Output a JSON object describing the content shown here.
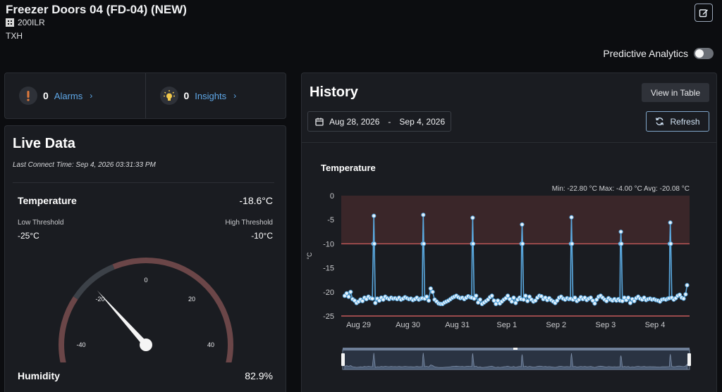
{
  "header": {
    "title": "Freezer Doors 04 (FD-04) (NEW)",
    "serial": "200ILR",
    "site": "TXH",
    "edit_icon": "edit-icon"
  },
  "predictive": {
    "label": "Predictive Analytics",
    "enabled": false
  },
  "alarms": {
    "count": "0",
    "label": "Alarms",
    "icon": "exclamation-icon",
    "color": "#e07a3c"
  },
  "insights": {
    "count": "0",
    "label": "Insights",
    "icon": "lightbulb-icon",
    "color": "#f2c94c"
  },
  "live": {
    "title": "Live Data",
    "last_connect": "Last Connect Time: Sep 4, 2026 03:31:33 PM",
    "temperature_label": "Temperature",
    "temperature_value": "-18.6°C",
    "low_label": "Low Threshold",
    "low_value": "-25°C",
    "high_label": "High Threshold",
    "high_value": "-10°C",
    "humidity_label": "Humidity",
    "humidity_value": "82.9%",
    "gauge": {
      "min": -60,
      "max": 60,
      "value": -18.6,
      "ticks": [
        "-60",
        "-40",
        "-20",
        "0",
        "20",
        "40",
        "60"
      ],
      "tick_values": [
        -60,
        -40,
        -20,
        0,
        20,
        40,
        60
      ]
    }
  },
  "history": {
    "title": "History",
    "view_table_label": "View in Table",
    "date_start": "Aug 28, 2026",
    "date_sep": "-",
    "date_end": "Sep 4, 2026",
    "refresh_label": "Refresh"
  },
  "chart_data": {
    "type": "line",
    "title": "Temperature",
    "ylabel": "°C",
    "stats_text": "Min: -22.80 °C  Max: -4.00 °C  Avg: -20.08 °C",
    "ylim": [
      -25,
      0
    ],
    "y_ticks": [
      0,
      -5,
      -10,
      -15,
      -20,
      -25
    ],
    "x_ticks": [
      {
        "label": "Aug 29",
        "day": 1
      },
      {
        "label": "Aug 30",
        "day": 2
      },
      {
        "label": "Aug 31",
        "day": 3
      },
      {
        "label": "Sep 1",
        "day": 4
      },
      {
        "label": "Sep 2",
        "day": 5
      },
      {
        "label": "Sep 3",
        "day": 6
      },
      {
        "label": "Sep 4",
        "day": 7
      }
    ],
    "thresholds": {
      "high": -10,
      "low": -25
    },
    "series": [
      {
        "x": [
          0.72,
          0.76,
          0.8,
          0.84,
          0.88,
          0.92,
          0.96,
          1.0,
          1.04,
          1.08,
          1.12,
          1.16,
          1.2,
          1.24,
          1.28,
          1.3,
          1.31,
          1.32,
          1.34,
          1.38,
          1.42,
          1.46,
          1.5,
          1.54,
          1.58,
          1.62,
          1.66,
          1.7,
          1.74,
          1.78,
          1.82,
          1.86,
          1.9,
          1.94,
          1.98,
          2.02,
          2.06,
          2.1,
          2.14,
          2.18,
          2.22,
          2.26,
          2.29,
          2.3,
          2.31,
          2.32,
          2.34,
          2.38,
          2.42,
          2.46,
          2.5,
          2.54,
          2.58,
          2.62,
          2.66,
          2.7,
          2.74,
          2.78,
          2.82,
          2.86,
          2.9,
          2.94,
          2.98,
          3.02,
          3.06,
          3.1,
          3.14,
          3.18,
          3.22,
          3.26,
          3.29,
          3.3,
          3.31,
          3.32,
          3.34,
          3.38,
          3.42,
          3.46,
          3.5,
          3.54,
          3.58,
          3.62,
          3.66,
          3.7,
          3.74,
          3.78,
          3.82,
          3.86,
          3.9,
          3.94,
          3.98,
          4.02,
          4.06,
          4.1,
          4.14,
          4.18,
          4.22,
          4.26,
          4.29,
          4.3,
          4.31,
          4.32,
          4.34,
          4.38,
          4.42,
          4.46,
          4.5,
          4.54,
          4.58,
          4.62,
          4.66,
          4.7,
          4.74,
          4.78,
          4.82,
          4.86,
          4.9,
          4.94,
          4.98,
          5.02,
          5.06,
          5.1,
          5.14,
          5.18,
          5.22,
          5.26,
          5.29,
          5.3,
          5.31,
          5.32,
          5.34,
          5.38,
          5.42,
          5.46,
          5.5,
          5.54,
          5.58,
          5.62,
          5.66,
          5.7,
          5.74,
          5.78,
          5.82,
          5.86,
          5.9,
          5.94,
          5.98,
          6.02,
          6.06,
          6.1,
          6.14,
          6.18,
          6.22,
          6.26,
          6.29,
          6.3,
          6.31,
          6.32,
          6.34,
          6.38,
          6.42,
          6.46,
          6.5,
          6.54,
          6.58,
          6.62,
          6.66,
          6.7,
          6.74,
          6.78,
          6.82,
          6.86,
          6.9,
          6.94,
          6.98,
          7.02,
          7.06,
          7.1,
          7.14,
          7.18,
          7.22,
          7.26,
          7.29,
          7.3,
          7.31,
          7.32,
          7.34,
          7.38,
          7.42,
          7.46,
          7.5,
          7.54,
          7.58,
          7.62,
          7.65
        ],
        "y": [
          -20.8,
          -20.3,
          -21.0,
          -20.0,
          -21.5,
          -21.8,
          -22.3,
          -22.0,
          -21.6,
          -21.9,
          -21.2,
          -21.5,
          -21.0,
          -21.3,
          -21.4,
          -10.0,
          -4.2,
          -10.0,
          -22.3,
          -21.4,
          -21.8,
          -21.2,
          -21.6,
          -21.0,
          -21.3,
          -21.5,
          -21.2,
          -21.4,
          -21.3,
          -21.5,
          -21.2,
          -21.6,
          -21.4,
          -21.1,
          -21.3,
          -21.5,
          -21.4,
          -21.7,
          -21.5,
          -21.2,
          -21.6,
          -21.4,
          -21.3,
          -10.0,
          -4.0,
          -10.0,
          -21.4,
          -21.0,
          -21.8,
          -19.3,
          -20.0,
          -21.6,
          -22.0,
          -22.4,
          -22.5,
          -22.5,
          -22.2,
          -22.0,
          -21.8,
          -21.5,
          -21.2,
          -21.0,
          -20.8,
          -21.1,
          -21.3,
          -21.2,
          -21.5,
          -21.2,
          -20.9,
          -21.1,
          -21.2,
          -10.0,
          -4.6,
          -10.0,
          -21.4,
          -20.8,
          -22.2,
          -21.6,
          -22.5,
          -22.2,
          -21.9,
          -21.6,
          -21.1,
          -20.8,
          -21.8,
          -22.5,
          -21.8,
          -22.4,
          -22.0,
          -21.6,
          -21.3,
          -20.8,
          -21.5,
          -22.0,
          -21.2,
          -22.3,
          -21.6,
          -21.2,
          -21.5,
          -10.0,
          -6.0,
          -10.0,
          -21.6,
          -20.8,
          -21.9,
          -21.0,
          -21.6,
          -22.0,
          -21.8,
          -21.2,
          -20.8,
          -20.9,
          -21.5,
          -21.2,
          -21.7,
          -21.3,
          -21.7,
          -22.0,
          -22.3,
          -21.8,
          -21.2,
          -21.0,
          -21.4,
          -21.6,
          -21.3,
          -21.5,
          -21.4,
          -10.0,
          -4.5,
          -10.0,
          -21.6,
          -21.2,
          -21.9,
          -21.6,
          -21.1,
          -21.5,
          -21.2,
          -21.7,
          -21.4,
          -21.2,
          -21.8,
          -22.4,
          -21.6,
          -21.0,
          -20.8,
          -21.2,
          -21.6,
          -21.9,
          -21.3,
          -21.6,
          -21.8,
          -21.5,
          -21.8,
          -21.5,
          -21.8,
          -10.0,
          -7.5,
          -10.0,
          -21.9,
          -21.2,
          -21.7,
          -21.2,
          -22.3,
          -21.5,
          -21.9,
          -21.3,
          -21.0,
          -21.4,
          -21.6,
          -21.2,
          -21.7,
          -21.5,
          -21.4,
          -21.6,
          -21.5,
          -21.7,
          -21.8,
          -22.0,
          -21.6,
          -21.5,
          -21.6,
          -21.4,
          -21.3,
          -10.0,
          -5.6,
          -10.0,
          -21.2,
          -21.6,
          -21.3,
          -20.8,
          -20.6,
          -21.2,
          -21.4,
          -20.5,
          -18.6
        ]
      }
    ]
  }
}
